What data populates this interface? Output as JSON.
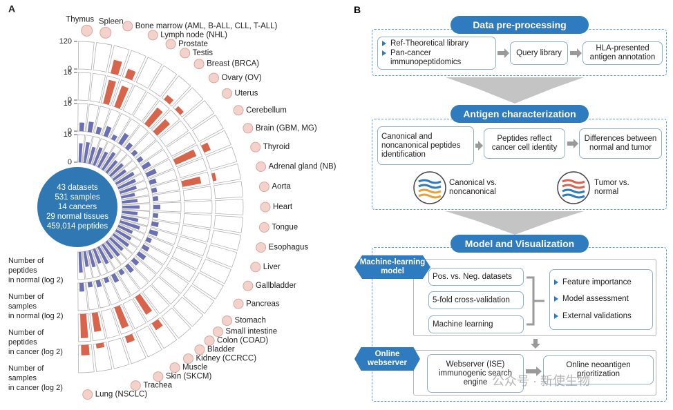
{
  "panel_a": {
    "label": "A",
    "tissues": [
      "Thymus",
      "Spleen",
      "Bone marrow (AML, B-ALL, CLL, T-ALL)",
      "Lymph node (NHL)",
      "Prostate",
      "Testis",
      "Breast (BRCA)",
      "Ovary (OV)",
      "Uterus",
      "Cerebellum",
      "Brain (GBM, MG)",
      "Thyroid",
      "Adrenal gland (NB)",
      "Aorta",
      "Heart",
      "Tongue",
      "Esophagus",
      "Liver",
      "Gallbladder",
      "Pancreas",
      "Stomach",
      "Small intestine",
      "Colon (COAD)",
      "Bladder",
      "Kidney (CCRCC)",
      "Muscle",
      "Skin (SKCM)",
      "Trachea",
      "Lung (NSCLC)"
    ],
    "summary": [
      "43 datasets",
      "531 samples",
      "14 cancers",
      "29 normal tissues",
      "459,014 peptides"
    ],
    "rings": [
      {
        "name": [
          "Number of",
          "peptides",
          "in normal (log 2)"
        ],
        "color": "#6b6fb5",
        "lim": [
          0,
          16
        ],
        "ticks": [
          0,
          16
        ],
        "values": [
          11,
          12,
          10,
          11,
          10,
          12,
          9,
          10,
          9,
          12,
          11,
          10,
          8,
          9,
          10,
          9,
          10,
          12,
          9,
          10,
          11,
          10,
          11,
          10,
          11,
          9,
          10,
          9,
          12
        ]
      },
      {
        "name": [
          "Number of",
          "samples",
          "in normal (log 2)"
        ],
        "color": "#6b6fb5",
        "lim": [
          0,
          16
        ],
        "ticks": [
          0,
          16
        ],
        "values": [
          5,
          6,
          4,
          6,
          3,
          7,
          4,
          3,
          3,
          5,
          6,
          4,
          3,
          3,
          4,
          3,
          4,
          5,
          3,
          4,
          5,
          4,
          5,
          3,
          5,
          3,
          4,
          3,
          5
        ]
      },
      {
        "name": [
          "Number of",
          "peptides",
          "in cancer (log 2)"
        ],
        "color": "#d8644c",
        "lim": [
          0,
          16
        ],
        "ticks": [
          0,
          16
        ],
        "values": [
          null,
          null,
          14,
          13,
          null,
          null,
          12,
          10,
          null,
          null,
          13,
          null,
          11,
          null,
          null,
          null,
          null,
          null,
          null,
          null,
          null,
          null,
          null,
          12,
          null,
          13,
          null,
          11,
          14
        ]
      },
      {
        "name": [
          "Number of",
          "samples",
          "in cancer (log 2)"
        ],
        "color": "#d8644c",
        "lim": [
          0,
          120
        ],
        "ticks": [
          0,
          120
        ],
        "values": [
          null,
          null,
          60,
          40,
          null,
          null,
          25,
          20,
          null,
          null,
          30,
          null,
          15,
          null,
          null,
          null,
          null,
          null,
          null,
          null,
          null,
          null,
          null,
          35,
          null,
          30,
          null,
          20,
          45
        ]
      }
    ]
  },
  "panel_b": {
    "label": "B",
    "preprocessing": {
      "title": "Data pre-processing",
      "sources": [
        "Ref-Theoretical library",
        "Pan-cancer immunopeptidomics"
      ],
      "steps": [
        "Query library",
        "HLA-presented antigen annotation"
      ]
    },
    "characterization": {
      "title": "Antigen characterization",
      "steps": [
        "Canonical and noncanonical peptides identification",
        "Peptides reflect cancer cell identity",
        "Differences between normal and tumor"
      ],
      "comparisons": [
        "Canonical vs. noncanonical",
        "Tumor vs. normal"
      ]
    },
    "modeling": {
      "title": "Model and Visualization",
      "ml_tag": "Machine-learning model",
      "ml_inputs": [
        "Pos. vs. Neg. datasets",
        "5-fold cross-validation",
        "Machine learning"
      ],
      "ml_outputs": [
        "Feature importance",
        "Model assessment",
        "External validations"
      ],
      "web_tag": "Online webserver",
      "web_steps": [
        "Webserver (ISE) immunogenic search engine",
        "Online neoantigen prioritization"
      ]
    }
  },
  "watermark": "公众号 · 新使生物"
}
